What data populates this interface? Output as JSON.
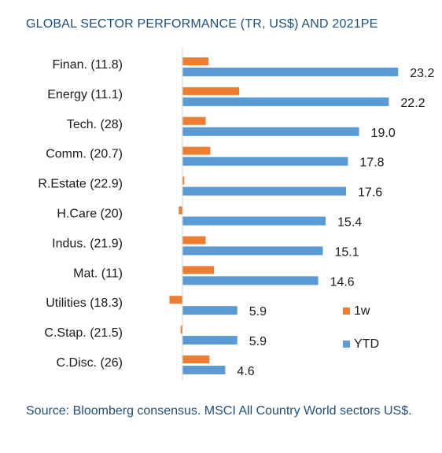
{
  "title": "GLOBAL SECTOR PERFORMANCE (TR, US$) AND 2021PE",
  "source": "Source: Bloomberg consensus. MSCI All Country World sectors US$.",
  "colors": {
    "one_week": "#ed7d31",
    "ytd": "#5b9bd5",
    "axis": "#d0d0d0"
  },
  "chart_data": {
    "type": "bar",
    "orientation": "horizontal",
    "categories": [
      "Finan. (11.8)",
      "Energy (11.1)",
      "Tech. (28)",
      "Comm. (20.7)",
      "R.Estate (22.9)",
      "H.Care (20)",
      "Indus. (21.9)",
      "Mat. (11)",
      "Utilities (18.3)",
      "C.Stap. (21.5)",
      "C.Disc. (26)"
    ],
    "series": [
      {
        "name": "1w",
        "color": "#ed7d31",
        "values": [
          2.8,
          6.1,
          2.5,
          3.0,
          0.2,
          -0.4,
          2.5,
          3.4,
          -1.4,
          -0.2,
          2.9
        ]
      },
      {
        "name": "YTD",
        "color": "#5b9bd5",
        "values": [
          23.2,
          22.2,
          19.0,
          17.8,
          17.6,
          15.4,
          15.1,
          14.6,
          5.9,
          5.9,
          4.6
        ],
        "data_labels": [
          "23.2",
          "22.2",
          "19.0",
          "17.8",
          "17.6",
          "15.4",
          "15.1",
          "14.6",
          "5.9",
          "5.9",
          "4.6"
        ]
      }
    ],
    "legend_position": "right",
    "grid": false
  }
}
